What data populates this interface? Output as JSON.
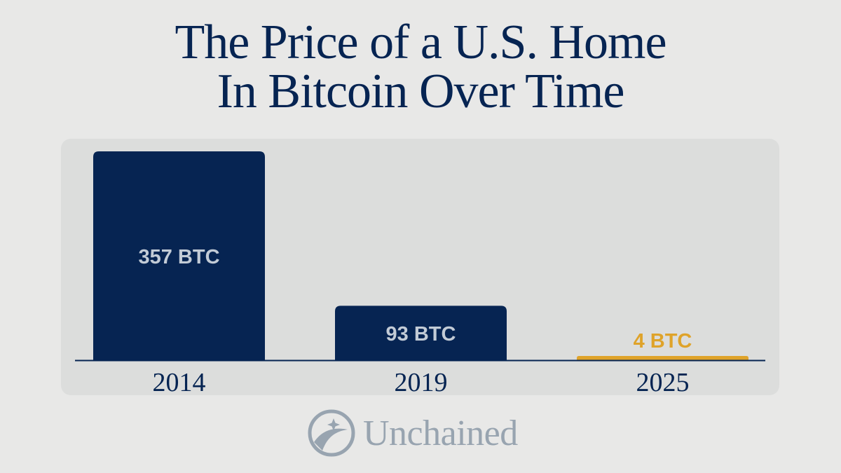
{
  "title_line1": "The Price of a U.S. Home",
  "title_line2": "In Bitcoin Over Time",
  "brand": {
    "name": "Unchained",
    "logo_icon": "unchained-star-circle-icon"
  },
  "colors": {
    "background": "#e8e8e7",
    "panel": "#dcdddc",
    "primary_bar": "#062452",
    "highlight_bar": "#dfa32a",
    "bar_label_on_dark": "#c2cbd6",
    "axis_text": "#062452",
    "logo": "#98a4b0"
  },
  "chart_data": {
    "type": "bar",
    "title": "The Price of a U.S. Home In Bitcoin Over Time",
    "categories": [
      "2014",
      "2019",
      "2025"
    ],
    "values": [
      357,
      93,
      4
    ],
    "unit": "BTC",
    "data_labels": [
      "357 BTC",
      "93 BTC",
      "4 BTC"
    ],
    "highlight_category": "2025",
    "xlabel": "",
    "ylabel": "",
    "ylim": [
      0,
      357
    ],
    "grid": false,
    "legend": "none"
  }
}
